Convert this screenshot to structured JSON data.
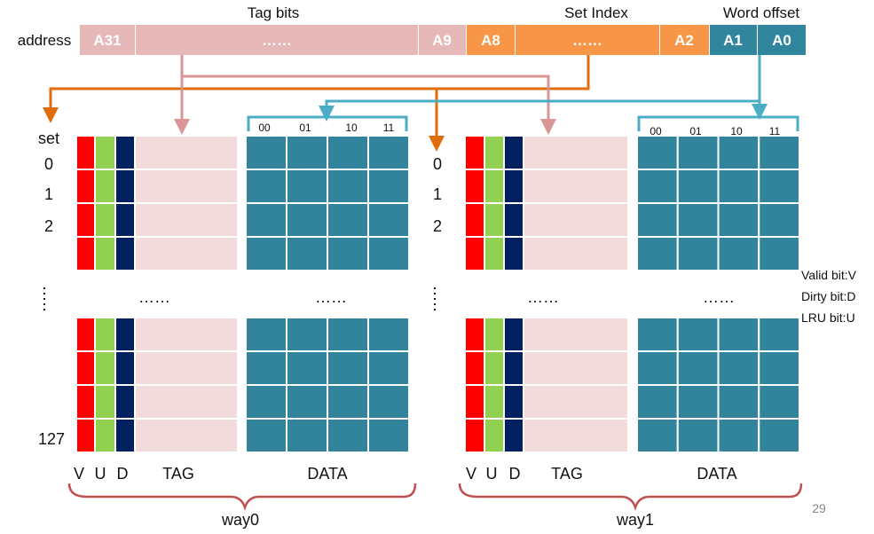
{
  "address": {
    "label": "address",
    "header_tag": "Tag bits",
    "header_set": "Set Index",
    "header_word": "Word offset",
    "tag_fields": [
      "A31",
      "……",
      "A9"
    ],
    "set_fields": [
      "A8",
      "……",
      "A2"
    ],
    "word_fields": [
      "A1",
      "A0"
    ]
  },
  "colors": {
    "tag_field": "#e6b8b8",
    "set_field": "#f79646",
    "word_field": "#31859c",
    "set_arrow": "#e26b0a",
    "tag_arrow": "#d99694",
    "word_arrow": "#4bacc6",
    "valid": "#ff0000",
    "lru": "#92d050",
    "dirty": "#002060",
    "tag_cell": "#f2dcdb",
    "data_cell": "#31849b",
    "brace": "#c0504d"
  },
  "sets": {
    "header": "set",
    "indices": [
      "0",
      "1",
      "2"
    ],
    "last": "127",
    "ellipsis": "……"
  },
  "word_columns": [
    "00",
    "01",
    "10",
    "11"
  ],
  "column_labels": {
    "valid": "V",
    "lru": "U",
    "dirty": "D",
    "tag": "TAG",
    "data": "DATA"
  },
  "ways": [
    {
      "name": "way0"
    },
    {
      "name": "way1"
    }
  ],
  "legend": [
    "Valid bit:V",
    "Dirty bit:D",
    "LRU  bit:U"
  ],
  "page_number": "29"
}
